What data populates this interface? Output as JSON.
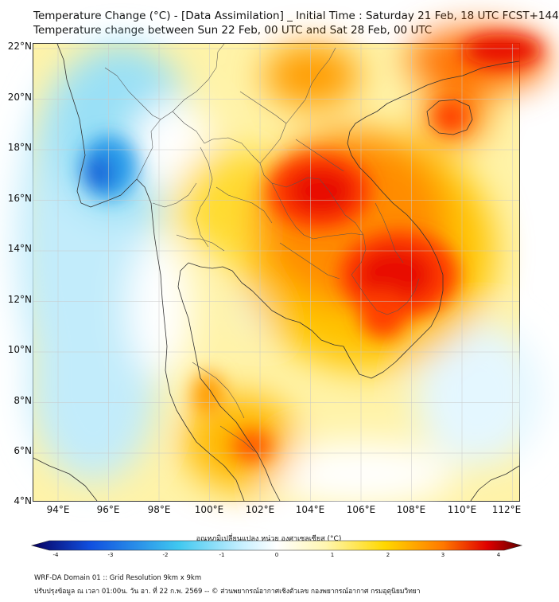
{
  "title": {
    "line1": "Temperature Change (°C) - [Data Assimilation] _ Initial Time : Saturday 21 Feb, 18 UTC FCST+144",
    "line2": "Temperature change between Sun 22 Feb, 00 UTC and Sat 28 Feb, 00 UTC"
  },
  "axes": {
    "lat_labels": [
      "22°N",
      "20°N",
      "18°N",
      "16°N",
      "14°N",
      "12°N",
      "10°N",
      "8°N",
      "6°N",
      "4°N"
    ],
    "lon_labels": [
      "94°E",
      "96°E",
      "98°E",
      "100°E",
      "102°E",
      "104°E",
      "106°E",
      "108°E",
      "110°E",
      "112°E"
    ]
  },
  "colorbar": {
    "title": "อุณหภูมิเปลี่ยนแปลง หน่วย องศาเซลเซียส (°C)",
    "ticks": [
      "-4",
      "-3",
      "-2",
      "-1",
      "0",
      "1",
      "2",
      "3",
      "4"
    ],
    "colors": {
      "deep_blue": "#080060",
      "blue": "#1050e0",
      "cyan": "#40c8f0",
      "light_blue": "#c8f0ff",
      "white": "#ffffff",
      "light_yellow": "#fff6b0",
      "yellow": "#ffd800",
      "orange": "#ff7800",
      "red": "#e00000",
      "dark_red": "#600000"
    }
  },
  "footer": {
    "line1": "WRF-DA Domain 01 :: Grid Resolution 9km x 9km",
    "line2": "ปรับปรุงข้อมูล ณ เวลา 01:00น. วัน อา. ที่ 22 ก.พ. 2569 -- © ส่วนพยากรณ์อากาศเชิงตัวเลข กองพยากรณ์อากาศ กรมอุตุนิยมวิทยา"
  }
}
